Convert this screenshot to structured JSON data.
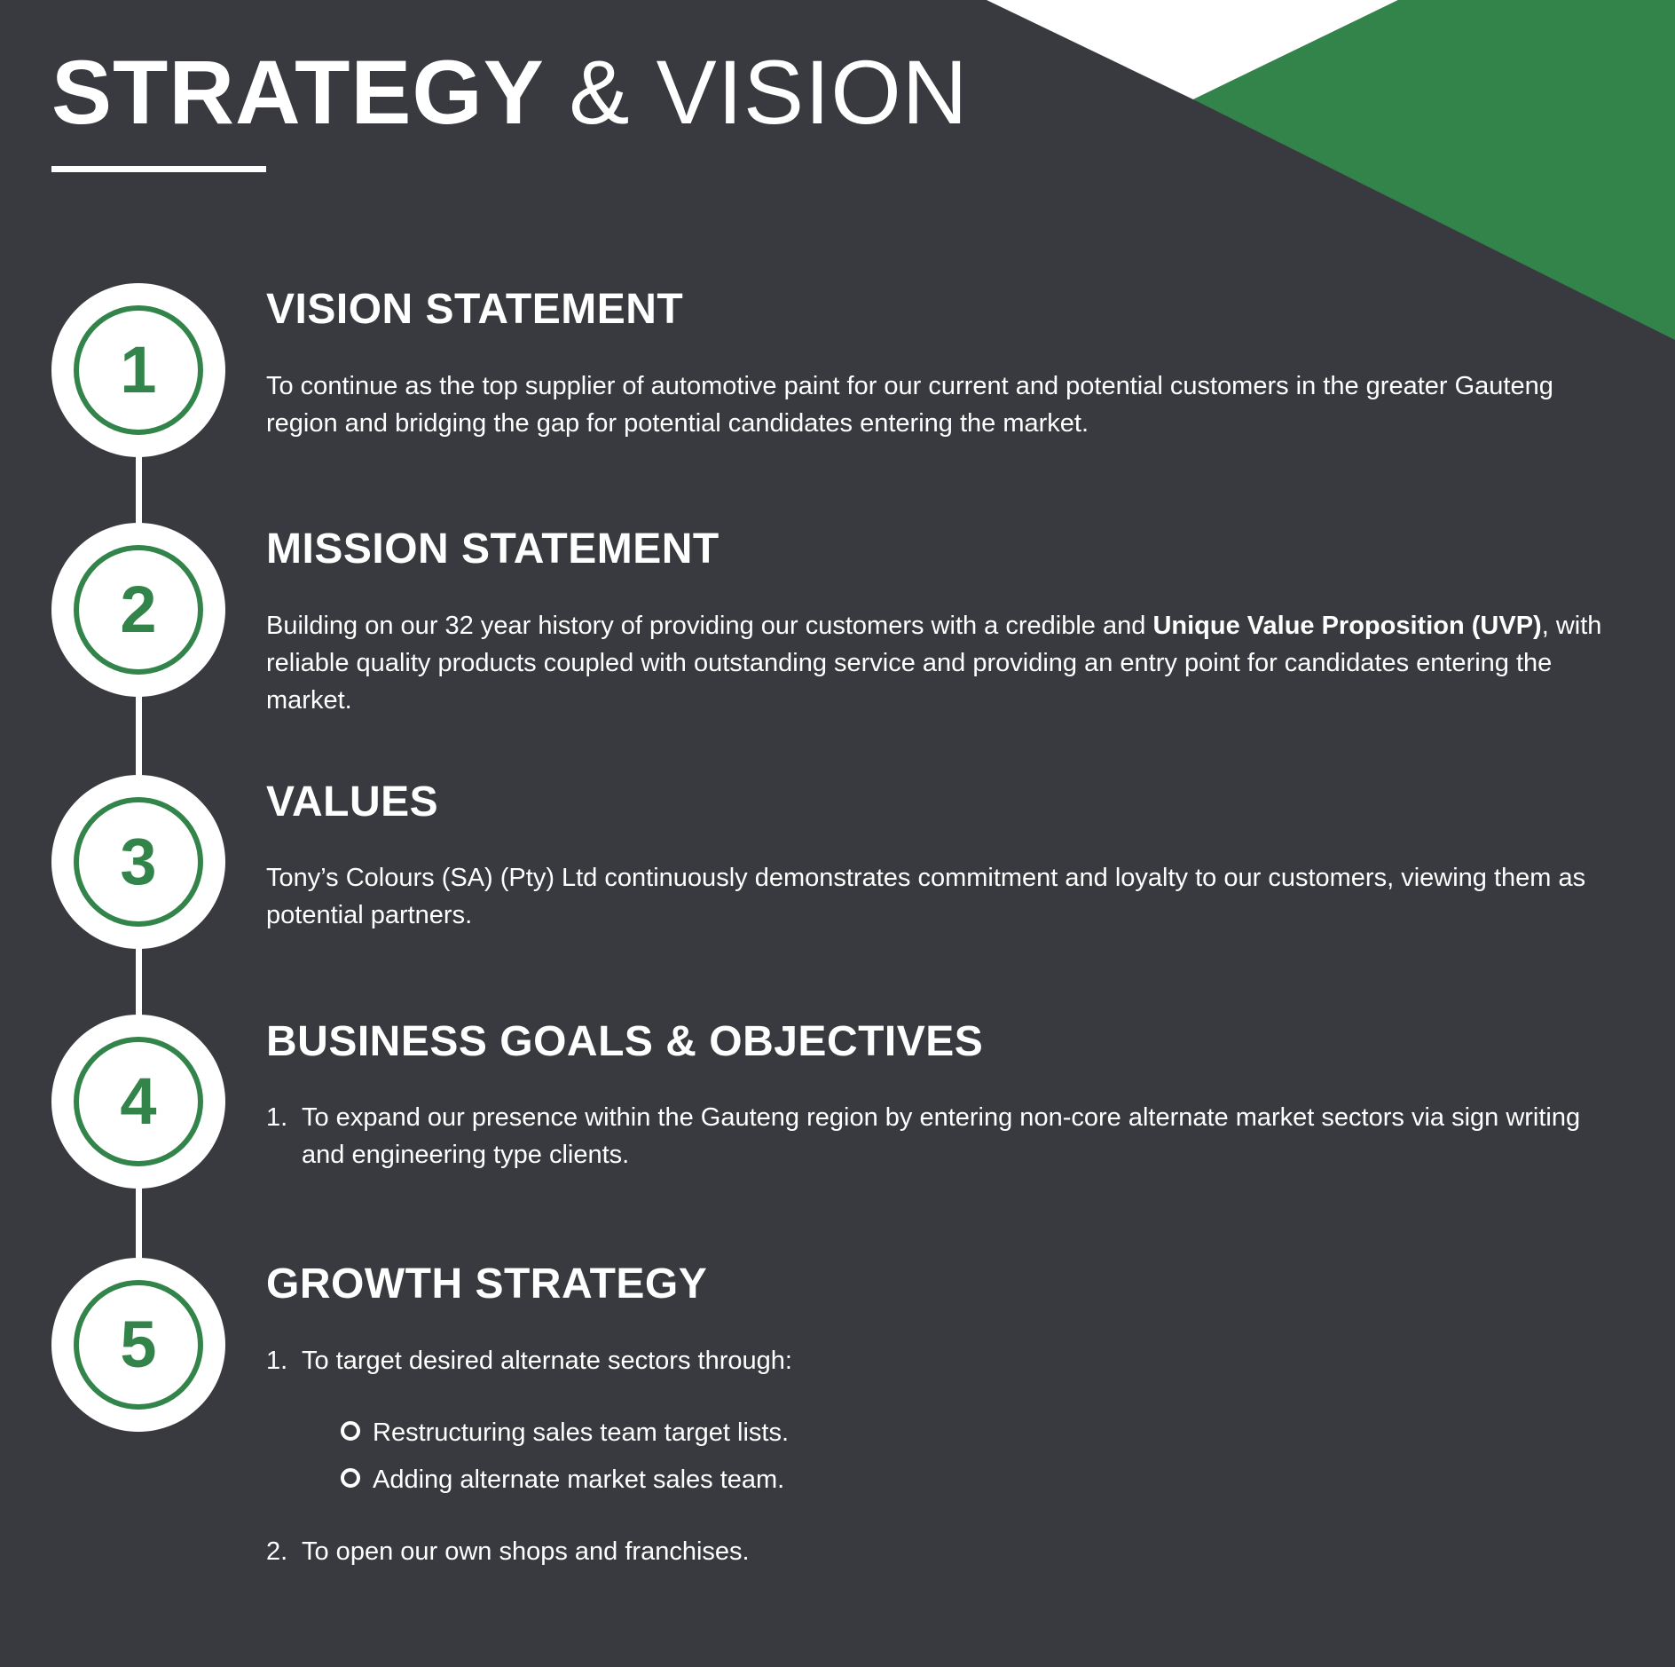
{
  "title": {
    "bold_part": "STRATEGY",
    "light_part": "& VISION"
  },
  "colors": {
    "background": "#383a3f",
    "accent_green": "#33844a",
    "white": "#ffffff"
  },
  "sections": [
    {
      "number": "1",
      "heading": "VISION STATEMENT",
      "text": "To continue as the top supplier of automotive paint for our current and potential customers in the greater Gauteng region and bridging the gap for potential candidates entering the market."
    },
    {
      "number": "2",
      "heading": "MISSION STATEMENT",
      "text_before": "Building on our 32 year history of providing our customers with a credible and ",
      "text_bold": "Unique Value Proposition (UVP)",
      "text_after": ", with reliable quality products coupled with outstanding service and providing an entry point for candidates entering the market."
    },
    {
      "number": "3",
      "heading": "VALUES",
      "text": "Tony’s Colours (SA) (Pty) Ltd continuously demonstrates commitment and loyalty to our customers, viewing them as potential partners."
    },
    {
      "number": "4",
      "heading": "BUSINESS GOALS & OBJECTIVES",
      "items": [
        {
          "marker": "1.",
          "text": "To expand our presence within the Gauteng region by entering non-core alternate market sectors via sign writing and engineering type clients."
        }
      ]
    },
    {
      "number": "5",
      "heading": "GROWTH STRATEGY",
      "items": [
        {
          "marker": "1.",
          "text": "To target desired alternate sectors through:",
          "subitems": [
            "Restructuring sales team target lists.",
            "Adding alternate market sales team."
          ]
        },
        {
          "marker": "2.",
          "text": "To open our own shops and franchises."
        }
      ]
    }
  ]
}
